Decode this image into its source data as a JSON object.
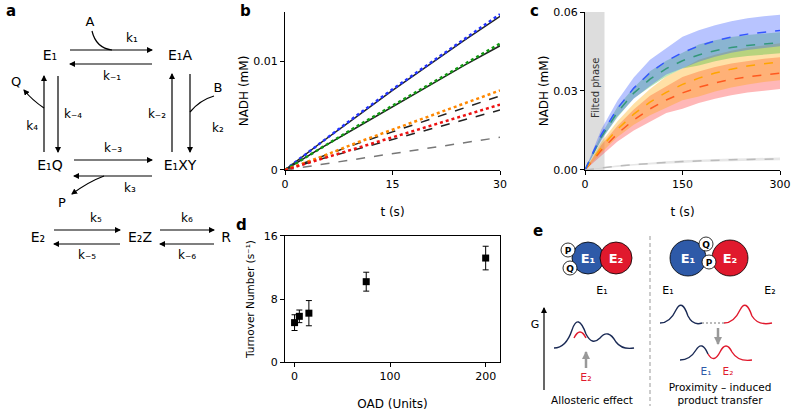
{
  "chart_data": [
    {
      "letter": "b",
      "type": "line",
      "x_label": "t (s)",
      "y_label": "NADH (mM)",
      "xlim": [
        0,
        30
      ],
      "xticks": [
        0,
        15,
        30
      ],
      "ylim": [
        0,
        0.0145
      ],
      "yticks": [
        0,
        0.01
      ],
      "grid": false,
      "x": [
        0,
        5,
        10,
        15,
        20,
        25,
        30
      ],
      "series": [
        {
          "color": "#222222",
          "line_style": "solid",
          "values": [
            0,
            0.0025,
            0.0049,
            0.0073,
            0.0096,
            0.0119,
            0.0141
          ]
        },
        {
          "color": "#222222",
          "line_style": "solid",
          "values": [
            0,
            0.002,
            0.0039,
            0.0058,
            0.0077,
            0.0096,
            0.0114
          ]
        },
        {
          "color": "#222222",
          "line_style": "dashed",
          "values": [
            0,
            0.0012,
            0.0024,
            0.0035,
            0.0046,
            0.0057,
            0.0068
          ]
        },
        {
          "color": "#222222",
          "line_style": "dashed",
          "values": [
            0,
            0.001,
            0.0019,
            0.0028,
            0.0037,
            0.0046,
            0.0055
          ]
        },
        {
          "color": "#777777",
          "line_style": "dashed",
          "values": [
            0,
            0.0005,
            0.001,
            0.0015,
            0.002,
            0.0025,
            0.003
          ]
        },
        {
          "color": "#2233ff",
          "line_style": "dotted",
          "values": [
            0,
            0.0025,
            0.005,
            0.0074,
            0.0097,
            0.012,
            0.0143
          ]
        },
        {
          "color": "#119911",
          "line_style": "dotted",
          "values": [
            0,
            0.002,
            0.004,
            0.0059,
            0.0078,
            0.0097,
            0.0116
          ]
        },
        {
          "color": "#ff8800",
          "line_style": "dotted",
          "values": [
            0,
            0.0012,
            0.0025,
            0.0037,
            0.0049,
            0.0061,
            0.0073
          ]
        },
        {
          "color": "#ee1111",
          "line_style": "dotted",
          "values": [
            0,
            0.001,
            0.002,
            0.003,
            0.004,
            0.005,
            0.006
          ]
        }
      ]
    },
    {
      "letter": "c",
      "type": "line",
      "x_label": "t (s)",
      "y_label": "NADH (mM)",
      "xlim": [
        0,
        300
      ],
      "xticks": [
        0,
        150,
        300
      ],
      "ylim": [
        0,
        0.06
      ],
      "yticks": [
        {
          "value": 0,
          "label": "0.00"
        },
        {
          "value": 0.03,
          "label": "0.03"
        },
        {
          "value": 0.06,
          "label": "0.06"
        }
      ],
      "grid": false,
      "annotations": [
        {
          "text": "Filted phase",
          "x_range": [
            0,
            30
          ]
        }
      ],
      "x": [
        0,
        25,
        50,
        75,
        100,
        125,
        150,
        175,
        200,
        225,
        250,
        275,
        300
      ],
      "series": [
        {
          "color": "#ff3030",
          "line_style": "dashed",
          "values": [
            0,
            0.0075,
            0.0138,
            0.019,
            0.0232,
            0.0266,
            0.0293,
            0.0314,
            0.0331,
            0.0344,
            0.0354,
            0.0362,
            0.0368
          ],
          "error": [
            0,
            0.002,
            0.003,
            0.004,
            0.005,
            0.005,
            0.006,
            0.006,
            0.006,
            0.006,
            0.006,
            0.006,
            0.006
          ]
        },
        {
          "color": "#ffa500",
          "line_style": "dashed",
          "values": [
            0,
            0.0085,
            0.0155,
            0.0212,
            0.0258,
            0.0295,
            0.0325,
            0.0349,
            0.0368,
            0.0383,
            0.0395,
            0.0404,
            0.0411
          ],
          "error": [
            0,
            0.002,
            0.003,
            0.004,
            0.005,
            0.006,
            0.006,
            0.007,
            0.007,
            0.007,
            0.007,
            0.007,
            0.007
          ]
        },
        {
          "color": "#33bb33",
          "line_style": "dashed",
          "values": [
            0,
            0.0125,
            0.022,
            0.0292,
            0.0345,
            0.0385,
            0.0415,
            0.0437,
            0.0453,
            0.0465,
            0.0473,
            0.0479,
            0.0483
          ],
          "error": [
            0,
            0.001,
            0.002,
            0.002,
            0.003,
            0.003,
            0.003,
            0.004,
            0.004,
            0.004,
            0.004,
            0.004,
            0.004
          ]
        },
        {
          "color": "#3355ff",
          "line_style": "dashed",
          "values": [
            0,
            0.0134,
            0.0234,
            0.0311,
            0.0369,
            0.0413,
            0.0446,
            0.0471,
            0.049,
            0.0505,
            0.0516,
            0.0524,
            0.053
          ],
          "error": [
            0,
            0.002,
            0.003,
            0.004,
            0.005,
            0.005,
            0.006,
            0.006,
            0.006,
            0.006,
            0.006,
            0.006,
            0.006
          ]
        },
        {
          "color": "#bbbbbb",
          "line_style": "dashed",
          "values": [
            0,
            0.0008,
            0.0015,
            0.002,
            0.0025,
            0.0029,
            0.0032,
            0.0035,
            0.0037,
            0.0039,
            0.004,
            0.0041,
            0.0042
          ],
          "error": [
            0,
            0.0002,
            0.0003,
            0.0003,
            0.0004,
            0.0004,
            0.0005,
            0.0005,
            0.0005,
            0.0005,
            0.0005,
            0.0005,
            0.0005
          ]
        }
      ]
    },
    {
      "letter": "d",
      "type": "scatter",
      "x_label": "OAD (Units)",
      "y_label": "Turnover Number (s⁻¹)",
      "xlim": [
        -10,
        215
      ],
      "xticks": [
        0,
        100,
        200
      ],
      "ylim": [
        0,
        16
      ],
      "yticks": [
        0,
        8,
        16
      ],
      "grid": false,
      "marker": "square",
      "color": "#000000",
      "x": [
        0,
        5,
        15,
        75,
        200
      ],
      "values": [
        5.0,
        5.8,
        6.2,
        10.2,
        13.2
      ],
      "error": [
        1.0,
        0.8,
        1.6,
        1.2,
        1.5
      ]
    }
  ],
  "diagram_a": {
    "letter": "a",
    "nodes": {
      "E1": "E₁",
      "E1A": "E₁A",
      "E1XY": "E₁XY",
      "E1Q": "E₁Q",
      "E2": "E₂",
      "E2Z": "E₂Z",
      "R": "R"
    },
    "species": {
      "A": "A",
      "B": "B",
      "P": "P",
      "Q": "Q"
    },
    "rates": {
      "k1": "k₁",
      "k-1": "k₋₁",
      "k2": "k₂",
      "k-2": "k₋₂",
      "k3": "k₃",
      "k-3": "k₋₃",
      "k4": "k₄",
      "k-4": "k₋₄",
      "k5": "k₅",
      "k-5": "k₋₅",
      "k6": "k₆",
      "k-6": "k₋₆"
    }
  },
  "diagram_e": {
    "letter": "e",
    "axis_label": "G",
    "left": {
      "circles": [
        {
          "label": "E₁",
          "color": "#2e5aa8"
        },
        {
          "label": "E₂",
          "color": "#e0192d"
        },
        {
          "label": "P",
          "color": "#ffffff"
        },
        {
          "label": "Q",
          "color": "#ffffff"
        }
      ],
      "label": "E₁",
      "curve_label": "E₂",
      "caption": "Allosteric effect"
    },
    "right": {
      "circles": [
        {
          "label": "E₁",
          "color": "#2e5aa8"
        },
        {
          "label": "E₂",
          "color": "#e0192d"
        },
        {
          "label": "P",
          "color": "#ffffff"
        },
        {
          "label": "Q",
          "color": "#ffffff"
        }
      ],
      "label_left": "E₁",
      "label_right": "E₂",
      "after_labels": [
        "E₁",
        "E₂"
      ],
      "caption": "Proximity – induced product transfer"
    }
  }
}
